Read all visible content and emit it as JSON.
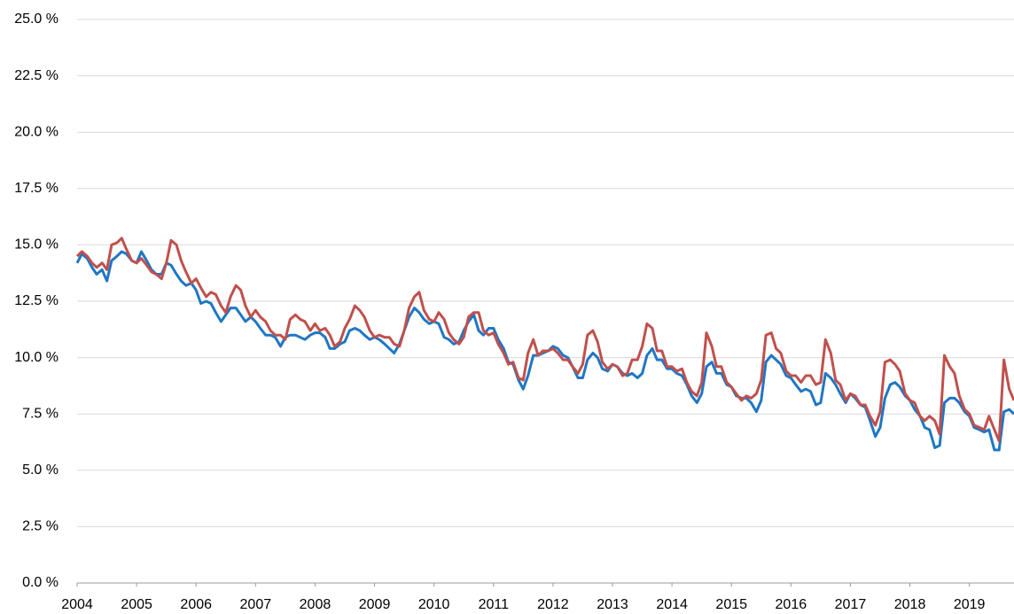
{
  "chart_data": {
    "type": "line",
    "xlim": [
      2004,
      2019.75
    ],
    "xticks": [
      2004,
      2005,
      2006,
      2007,
      2008,
      2009,
      2010,
      2011,
      2012,
      2013,
      2014,
      2015,
      2016,
      2017,
      2018,
      2019
    ],
    "ylim": [
      0,
      25
    ],
    "yticks": [
      {
        "value": 0,
        "label": "0.0 %"
      },
      {
        "value": 2.5,
        "label": "2.5 %"
      },
      {
        "value": 5,
        "label": "5.0 %"
      },
      {
        "value": 7.5,
        "label": "7.5 %"
      },
      {
        "value": 10,
        "label": "10.0 %"
      },
      {
        "value": 12.5,
        "label": "12.5 %"
      },
      {
        "value": 15,
        "label": "15.0 %"
      },
      {
        "value": 17.5,
        "label": "17.5 %"
      },
      {
        "value": 20,
        "label": "20.0 %"
      },
      {
        "value": 22.5,
        "label": "22.5 %"
      },
      {
        "value": 25,
        "label": "25.0 %"
      }
    ],
    "grid": true,
    "x": [
      2004,
      2004.08,
      2004.17,
      2004.25,
      2004.33,
      2004.42,
      2004.5,
      2004.58,
      2004.67,
      2004.75,
      2004.83,
      2004.92,
      2005,
      2005.08,
      2005.17,
      2005.25,
      2005.33,
      2005.42,
      2005.5,
      2005.58,
      2005.67,
      2005.75,
      2005.83,
      2005.92,
      2006,
      2006.08,
      2006.17,
      2006.25,
      2006.33,
      2006.42,
      2006.5,
      2006.58,
      2006.67,
      2006.75,
      2006.83,
      2006.92,
      2007,
      2007.08,
      2007.17,
      2007.25,
      2007.33,
      2007.42,
      2007.5,
      2007.58,
      2007.67,
      2007.75,
      2007.83,
      2007.92,
      2008,
      2008.08,
      2008.17,
      2008.25,
      2008.33,
      2008.42,
      2008.5,
      2008.58,
      2008.67,
      2008.75,
      2008.83,
      2008.92,
      2009,
      2009.08,
      2009.17,
      2009.25,
      2009.33,
      2009.42,
      2009.5,
      2009.58,
      2009.67,
      2009.75,
      2009.83,
      2009.92,
      2010,
      2010.08,
      2010.17,
      2010.25,
      2010.33,
      2010.42,
      2010.5,
      2010.58,
      2010.67,
      2010.75,
      2010.83,
      2010.92,
      2011,
      2011.08,
      2011.17,
      2011.25,
      2011.33,
      2011.42,
      2011.5,
      2011.58,
      2011.67,
      2011.75,
      2011.83,
      2011.92,
      2012,
      2012.08,
      2012.17,
      2012.25,
      2012.33,
      2012.42,
      2012.5,
      2012.58,
      2012.67,
      2012.75,
      2012.83,
      2012.92,
      2013,
      2013.08,
      2013.17,
      2013.25,
      2013.33,
      2013.42,
      2013.5,
      2013.58,
      2013.67,
      2013.75,
      2013.83,
      2013.92,
      2014,
      2014.08,
      2014.17,
      2014.25,
      2014.33,
      2014.42,
      2014.5,
      2014.58,
      2014.67,
      2014.75,
      2014.83,
      2014.92,
      2015,
      2015.08,
      2015.17,
      2015.25,
      2015.33,
      2015.42,
      2015.5,
      2015.58,
      2015.67,
      2015.75,
      2015.83,
      2015.92,
      2016,
      2016.08,
      2016.17,
      2016.25,
      2016.33,
      2016.42,
      2016.5,
      2016.58,
      2016.67,
      2016.75,
      2016.83,
      2016.92,
      2017,
      2017.08,
      2017.17,
      2017.25,
      2017.33,
      2017.42,
      2017.5,
      2017.58,
      2017.67,
      2017.75,
      2017.83,
      2017.92,
      2018,
      2018.08,
      2018.17,
      2018.25,
      2018.33,
      2018.42,
      2018.5,
      2018.58,
      2018.67,
      2018.75,
      2018.83,
      2018.92,
      2019,
      2019.08,
      2019.17,
      2019.25,
      2019.33,
      2019.42,
      2019.5,
      2019.58,
      2019.67,
      2019.75
    ],
    "series": [
      {
        "color": "#1f77c4",
        "values": [
          14.2,
          14.6,
          14.4,
          14.0,
          13.7,
          13.9,
          13.4,
          14.3,
          14.5,
          14.7,
          14.6,
          14.3,
          14.2,
          14.7,
          14.3,
          13.9,
          13.7,
          13.7,
          14.2,
          14.1,
          13.7,
          13.4,
          13.2,
          13.3,
          13.0,
          12.4,
          12.5,
          12.4,
          12.0,
          11.6,
          11.9,
          12.2,
          12.2,
          11.9,
          11.6,
          11.8,
          11.6,
          11.3,
          11.0,
          11.0,
          10.9,
          10.5,
          10.9,
          11.0,
          11.0,
          10.9,
          10.8,
          11.0,
          11.1,
          11.1,
          10.9,
          10.4,
          10.4,
          10.6,
          10.7,
          11.2,
          11.3,
          11.2,
          11.0,
          10.8,
          10.9,
          10.8,
          10.6,
          10.4,
          10.2,
          10.6,
          11.2,
          11.8,
          12.2,
          12.0,
          11.7,
          11.5,
          11.6,
          11.5,
          10.9,
          10.8,
          10.6,
          10.7,
          11.2,
          11.6,
          11.9,
          11.2,
          11.0,
          11.3,
          11.3,
          10.8,
          10.4,
          9.8,
          9.7,
          9.0,
          8.6,
          9.2,
          10.1,
          10.1,
          10.2,
          10.3,
          10.5,
          10.4,
          10.1,
          10.0,
          9.6,
          9.1,
          9.1,
          9.9,
          10.2,
          10.0,
          9.5,
          9.4,
          9.7,
          9.6,
          9.3,
          9.2,
          9.3,
          9.1,
          9.3,
          10.1,
          10.4,
          9.9,
          9.9,
          9.5,
          9.5,
          9.3,
          9.2,
          8.8,
          8.3,
          8.0,
          8.4,
          9.6,
          9.8,
          9.3,
          9.3,
          8.8,
          8.7,
          8.3,
          8.2,
          8.2,
          8.0,
          7.6,
          8.1,
          9.8,
          10.1,
          9.9,
          9.7,
          9.2,
          9.1,
          8.8,
          8.5,
          8.6,
          8.5,
          7.9,
          8.0,
          9.3,
          9.1,
          8.8,
          8.4,
          8.0,
          8.4,
          8.2,
          7.9,
          7.8,
          7.2,
          6.5,
          6.9,
          8.2,
          8.8,
          8.9,
          8.7,
          8.3,
          8.1,
          7.7,
          7.4,
          6.9,
          6.8,
          6.0,
          6.1,
          8.0,
          8.2,
          8.2,
          8.0,
          7.6,
          7.4,
          6.9,
          6.8,
          6.7,
          6.8,
          5.9,
          5.9,
          7.6,
          7.7,
          7.5
        ]
      },
      {
        "color": "#c0504d",
        "values": [
          14.5,
          14.7,
          14.5,
          14.2,
          14.0,
          14.2,
          13.9,
          15.0,
          15.1,
          15.3,
          14.8,
          14.3,
          14.2,
          14.4,
          14.1,
          13.8,
          13.7,
          13.5,
          14.2,
          15.2,
          15.0,
          14.3,
          13.8,
          13.3,
          13.5,
          13.1,
          12.7,
          12.9,
          12.8,
          12.3,
          12.0,
          12.7,
          13.2,
          13.0,
          12.3,
          11.8,
          12.1,
          11.8,
          11.6,
          11.2,
          11.0,
          11.0,
          10.8,
          11.7,
          11.9,
          11.7,
          11.6,
          11.2,
          11.5,
          11.2,
          11.3,
          11.0,
          10.5,
          10.7,
          11.3,
          11.7,
          12.3,
          12.1,
          11.8,
          11.2,
          10.9,
          11.0,
          10.9,
          10.9,
          10.6,
          10.5,
          11.2,
          12.2,
          12.7,
          12.9,
          12.1,
          11.7,
          11.6,
          12.0,
          11.7,
          11.1,
          10.8,
          10.6,
          10.9,
          11.8,
          12.0,
          12.0,
          11.2,
          11.0,
          11.1,
          10.6,
          10.2,
          9.7,
          9.8,
          9.1,
          9.0,
          10.2,
          10.8,
          10.1,
          10.3,
          10.3,
          10.4,
          10.2,
          9.9,
          9.9,
          9.6,
          9.3,
          9.7,
          11.0,
          11.2,
          10.7,
          9.8,
          9.5,
          9.7,
          9.6,
          9.2,
          9.3,
          9.9,
          9.9,
          10.5,
          11.5,
          11.3,
          10.3,
          10.3,
          9.6,
          9.6,
          9.4,
          9.5,
          8.9,
          8.5,
          8.3,
          8.9,
          11.1,
          10.5,
          9.6,
          9.6,
          8.9,
          8.7,
          8.4,
          8.1,
          8.3,
          8.2,
          8.4,
          9.0,
          11.0,
          11.1,
          10.4,
          10.2,
          9.4,
          9.2,
          9.2,
          8.9,
          9.2,
          9.2,
          8.8,
          8.9,
          10.8,
          10.2,
          9.0,
          8.8,
          8.1,
          8.4,
          8.3,
          7.9,
          7.9,
          7.4,
          7.0,
          7.6,
          9.8,
          9.9,
          9.7,
          9.4,
          8.4,
          8.1,
          8.0,
          7.4,
          7.2,
          7.4,
          7.2,
          6.6,
          10.1,
          9.6,
          9.3,
          8.3,
          7.7,
          7.5,
          7.0,
          6.9,
          6.8,
          7.4,
          6.8,
          6.3,
          9.9,
          8.6,
          8.1
        ]
      }
    ]
  }
}
